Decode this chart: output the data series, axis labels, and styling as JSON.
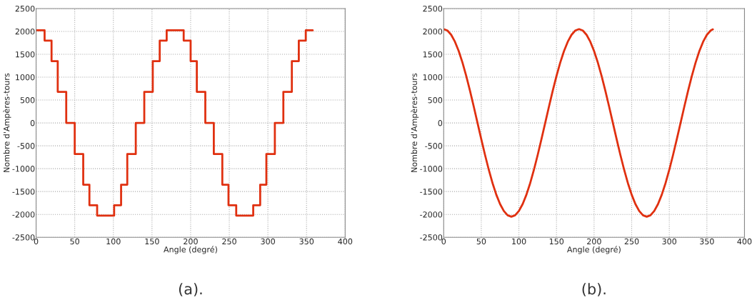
{
  "chart_data": [
    {
      "type": "step",
      "xlabel": "Angle (degré)",
      "ylabel": "Nombre d'Ampères-tours",
      "xlim": [
        0,
        400
      ],
      "xticks": [
        0,
        50,
        100,
        150,
        200,
        250,
        300,
        350,
        400
      ],
      "ylim": [
        -2500,
        2500
      ],
      "yticks": [
        -2500,
        -2000,
        -1500,
        -1000,
        -500,
        0,
        500,
        1000,
        1500,
        2000,
        2500
      ],
      "grid": true,
      "annotations": [
        "(a)."
      ],
      "series": [
        {
          "color": "#e03010",
          "x": [
            0,
            11,
            20,
            28,
            39,
            50,
            61,
            69,
            79,
            101,
            110,
            118,
            129,
            140,
            151,
            160,
            169,
            191,
            200,
            208,
            219,
            230,
            241,
            249,
            259,
            281,
            290,
            298,
            309,
            320,
            331,
            340,
            349,
            358
          ],
          "values": [
            2025,
            1800,
            1350,
            680,
            0,
            -680,
            -1350,
            -1800,
            -2025,
            -1800,
            -1350,
            -680,
            0,
            680,
            1350,
            1800,
            2025,
            1800,
            1350,
            680,
            0,
            -680,
            -1350,
            -1800,
            -2025,
            -1800,
            -1350,
            -680,
            0,
            680,
            1350,
            1800,
            2025,
            2025
          ]
        }
      ]
    },
    {
      "type": "line",
      "xlabel": "Angle (degré)",
      "ylabel": "Nombre d'Ampères-tours",
      "xlim": [
        0,
        400
      ],
      "xticks": [
        0,
        50,
        100,
        150,
        200,
        250,
        300,
        350,
        400
      ],
      "ylim": [
        -2500,
        2500
      ],
      "yticks": [
        -2500,
        -2000,
        -1500,
        -1000,
        -500,
        0,
        500,
        1000,
        1500,
        2000,
        2500
      ],
      "grid": true,
      "annotations": [
        "(b)."
      ],
      "series": [
        {
          "color": "#e03010",
          "x": [
            0,
            5,
            10,
            15,
            20,
            25,
            30,
            35,
            40,
            45,
            50,
            55,
            60,
            65,
            70,
            75,
            80,
            85,
            90,
            95,
            100,
            105,
            110,
            115,
            120,
            125,
            130,
            135,
            140,
            145,
            150,
            155,
            160,
            165,
            170,
            175,
            180,
            185,
            190,
            195,
            200,
            205,
            210,
            215,
            220,
            225,
            230,
            235,
            240,
            245,
            250,
            255,
            260,
            265,
            270,
            275,
            280,
            285,
            290,
            295,
            300,
            305,
            310,
            315,
            320,
            325,
            330,
            335,
            340,
            345,
            350,
            355,
            358
          ],
          "values": [
            2050,
            2019,
            1926,
            1775,
            1570,
            1318,
            1025,
            701,
            356,
            0,
            -356,
            -701,
            -1025,
            -1318,
            -1570,
            -1775,
            -1926,
            -2019,
            -2050,
            -2019,
            -1926,
            -1775,
            -1570,
            -1318,
            -1025,
            -701,
            -356,
            0,
            356,
            701,
            1025,
            1318,
            1570,
            1775,
            1926,
            2019,
            2050,
            2019,
            1926,
            1775,
            1570,
            1318,
            1025,
            701,
            356,
            0,
            -356,
            -701,
            -1025,
            -1318,
            -1570,
            -1775,
            -1926,
            -2019,
            -2050,
            -2019,
            -1926,
            -1775,
            -1570,
            -1318,
            -1025,
            -701,
            -356,
            0,
            356,
            701,
            1025,
            1318,
            1570,
            1775,
            1926,
            2019,
            2045
          ]
        }
      ]
    }
  ]
}
